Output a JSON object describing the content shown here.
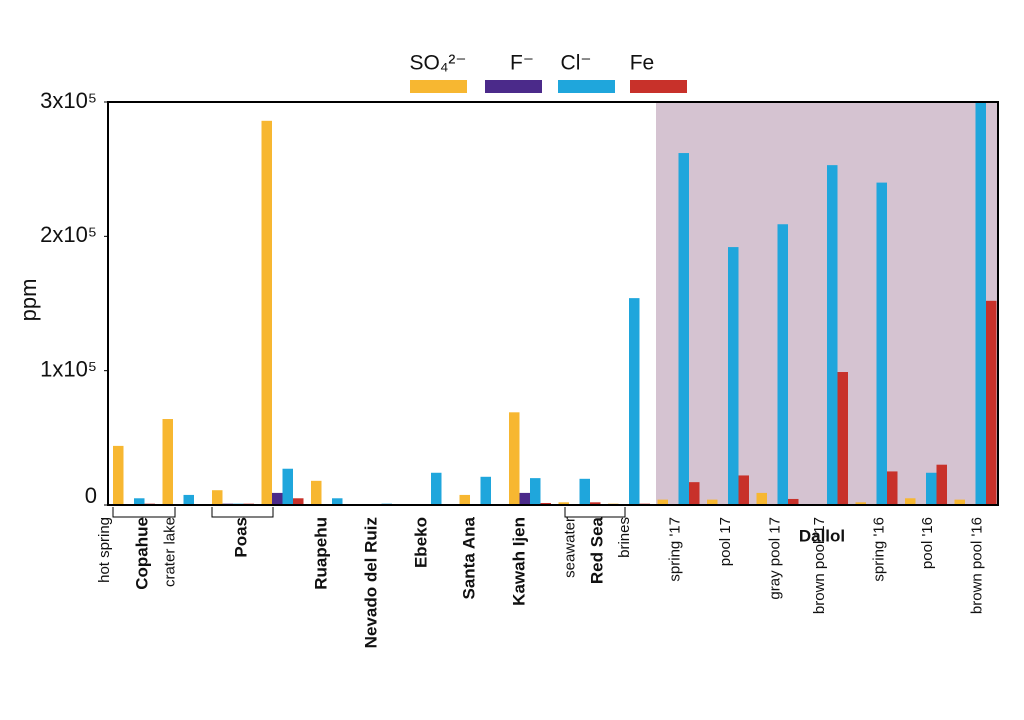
{
  "chart_data": {
    "type": "bar",
    "y_label": "ppm",
    "categories": [
      "hot spring",
      "crater lake",
      null,
      null,
      null,
      null,
      null,
      null,
      null,
      "seawater",
      "brines",
      "spring '17",
      "pool 17",
      "gray pool 17",
      "brown pool '17",
      "spring '16",
      "pool '16",
      "brown pool '16"
    ],
    "groups": [
      "Copahue",
      "Poas",
      "Ruapehu",
      "Nevado del Ruiz",
      "Ebeko",
      "Santa Ana",
      "Kawah Ijen",
      "Red Sea",
      "Dallol"
    ],
    "series": [
      {
        "name": "SO₄²⁻",
        "color": "#f7b731",
        "values": [
          44000,
          64000,
          11000,
          286000,
          18000,
          500,
          500,
          7500,
          69000,
          2000,
          1000,
          4000,
          4000,
          9000,
          500,
          2000,
          5000,
          4000
        ]
      },
      {
        "name": "F⁻",
        "color": "#4b2a8a",
        "values": [
          500,
          500,
          1000,
          9000,
          500,
          500,
          500,
          500,
          9000,
          500,
          500,
          500,
          500,
          500,
          500,
          500,
          500,
          500
        ]
      },
      {
        "name": "Cl⁻",
        "color": "#1fa6dc",
        "values": [
          5000,
          7500,
          1000,
          27000,
          5000,
          1000,
          24000,
          21000,
          20000,
          19500,
          154000,
          262000,
          192000,
          209000,
          253000,
          240000,
          24000,
          300000
        ]
      },
      {
        "name": "Fe",
        "color": "#c8312a",
        "values": [
          1000,
          500,
          1000,
          5000,
          500,
          500,
          500,
          500,
          1500,
          2000,
          1000,
          17000,
          22000,
          4500,
          99000,
          25000,
          30000,
          152000
        ]
      }
    ],
    "ylim": [
      0,
      300000
    ],
    "yticks": [
      0,
      {
        "value": 100000,
        "label": "1x10⁵"
      },
      {
        "value": 200000,
        "label": "2x10⁵"
      },
      {
        "value": 300000,
        "label": "3x10⁵"
      }
    ],
    "highlight_color": "#d5c3d1"
  }
}
